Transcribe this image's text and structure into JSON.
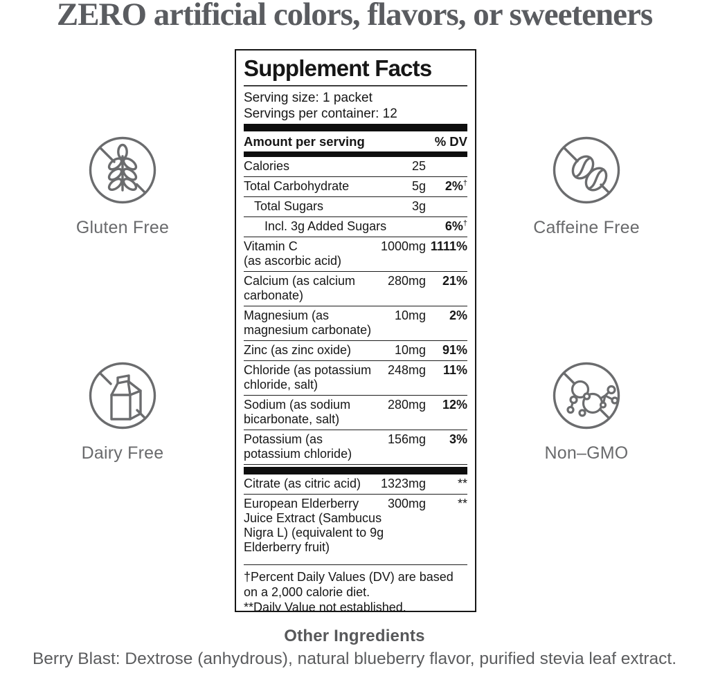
{
  "headline": "ZERO artificial colors, flavors, or sweeteners",
  "badges": [
    {
      "label": "Gluten Free",
      "icon": "gluten-free-icon"
    },
    {
      "label": "Caffeine Free",
      "icon": "caffeine-free-icon"
    },
    {
      "label": "Dairy Free",
      "icon": "dairy-free-icon"
    },
    {
      "label": "Non–GMO",
      "icon": "non-gmo-icon"
    }
  ],
  "panel": {
    "title": "Supplement Facts",
    "serving_size": "Serving size: 1 packet",
    "servings_per_container": "Servings per container: 12",
    "column_header": {
      "left": "Amount per serving",
      "right": "% DV"
    },
    "rows": [
      {
        "name": "Calories",
        "amount": "25",
        "dv": "",
        "dv_note": "",
        "indent": 0
      },
      {
        "name": "Total Carbohydrate",
        "amount": "5g",
        "dv": "2%",
        "dv_note": "†",
        "indent": 0
      },
      {
        "name": "Total Sugars",
        "amount": "3g",
        "dv": "",
        "dv_note": "",
        "indent": 1
      },
      {
        "name": "Incl. 3g Added Sugars",
        "amount": "",
        "dv": "6%",
        "dv_note": "†",
        "indent": 2
      },
      {
        "name": "Vitamin C\n(as ascorbic acid)",
        "amount": "1000mg",
        "dv": "1111%",
        "dv_note": "",
        "indent": 0
      },
      {
        "name": "Calcium (as calcium\ncarbonate)",
        "amount": "280mg",
        "dv": "21%",
        "dv_note": "",
        "indent": 0
      },
      {
        "name": "Magnesium (as\nmagnesium carbonate)",
        "amount": "10mg",
        "dv": "2%",
        "dv_note": "",
        "indent": 0
      },
      {
        "name": "Zinc (as zinc oxide)",
        "amount": "10mg",
        "dv": "91%",
        "dv_note": "",
        "indent": 0
      },
      {
        "name": "Chloride (as potassium\nchloride, salt)",
        "amount": "248mg",
        "dv": "11%",
        "dv_note": "",
        "indent": 0
      },
      {
        "name": "Sodium (as sodium\nbicarbonate, salt)",
        "amount": "280mg",
        "dv": "12%",
        "dv_note": "",
        "indent": 0
      },
      {
        "name": "Potassium (as\npotassium chloride)",
        "amount": "156mg",
        "dv": "3%",
        "dv_note": "",
        "indent": 0
      }
    ],
    "rows_secondary": [
      {
        "name": "Citrate (as citric acid)",
        "amount": "1323mg",
        "dv": "**",
        "dv_note": "",
        "indent": 0
      },
      {
        "name": "European Elderberry\nJuice Extract (Sambucus\nNigra L) (equivalent to 9g\nElderberry fruit)",
        "amount": "300mg",
        "dv": "**",
        "dv_note": "",
        "indent": 0
      }
    ],
    "footnotes": [
      "†Percent Daily Values (DV) are based on a 2,000 calorie diet.",
      "**Daily Value not established."
    ]
  },
  "other_ingredients": {
    "title": "Other Ingredients",
    "text": "Berry Blast: Dextrose (anhydrous), natural blueberry flavor, purified stevia leaf extract."
  },
  "colors": {
    "panel_text": "#161616",
    "panel_border": "#161616",
    "thick_bar": "#0e0e0e",
    "muted_gray_text": "#696a6c",
    "headline_gray": "#5a5c60",
    "icon_stroke": "#6b6c6e",
    "background": "#ffffff"
  }
}
